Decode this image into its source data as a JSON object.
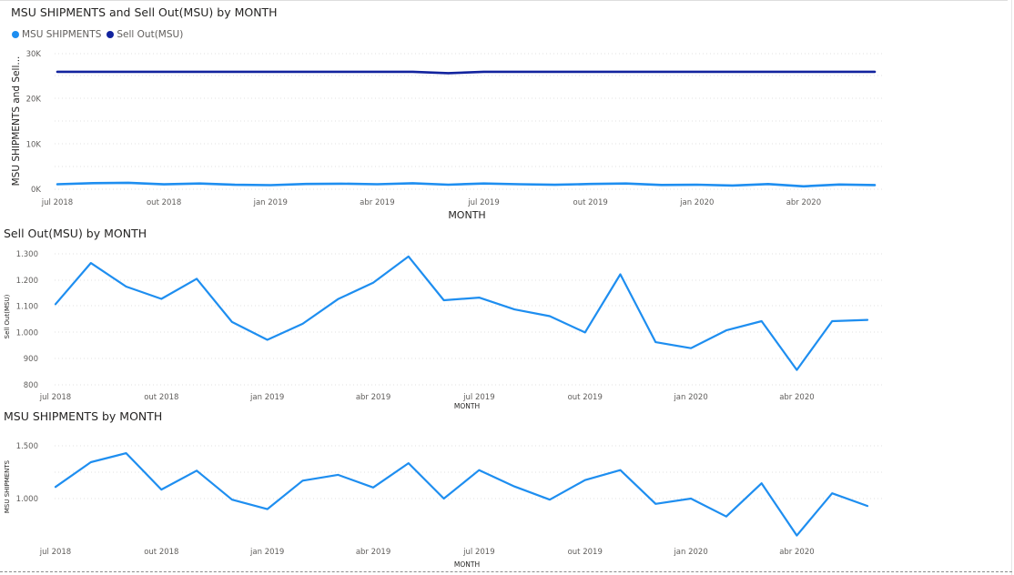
{
  "colors": {
    "msu_shipments": "#1e8ef0",
    "sell_out": "#12239e",
    "grid": "#e1e1e1",
    "axis_text": "#605e5c",
    "title": "#252423"
  },
  "months": [
    "jul 2018",
    "ago 2018",
    "set 2018",
    "out 2018",
    "nov 2018",
    "dez 2018",
    "jan 2019",
    "fev 2019",
    "mar 2019",
    "abr 2019",
    "mai 2019",
    "jun 2019",
    "jul 2019",
    "ago 2019",
    "set 2019",
    "out 2019",
    "nov 2019",
    "dez 2019",
    "jan 2020",
    "fev 2020",
    "mar 2020",
    "abr 2020",
    "mai 2020",
    "jun 2020"
  ],
  "chart_data": [
    {
      "type": "line",
      "title": "MSU SHIPMENTS and Sell Out(MSU) by MONTH",
      "xlabel": "MONTH",
      "ylabel": "MSU SHIPMENTS and Sell...",
      "x_tick_labels": [
        "jul 2018",
        "out 2018",
        "jan 2019",
        "abr 2019",
        "jul 2019",
        "out 2019",
        "jan 2020",
        "abr 2020"
      ],
      "y_tick_labels": [
        "0K",
        "10K",
        "20K",
        "30K"
      ],
      "y_ticks": [
        0,
        10000,
        20000,
        30000
      ],
      "ylim": [
        0,
        30000
      ],
      "legend_position": "top-left",
      "grid": true,
      "series": [
        {
          "name": "MSU SHIPMENTS",
          "color": "#1e8ef0",
          "values": [
            1100,
            1340,
            1430,
            1080,
            1260,
            990,
            900,
            1160,
            1220,
            1100,
            1330,
            1000,
            1270,
            1110,
            990,
            1170,
            1270,
            950,
            1000,
            830,
            1140,
            650,
            1050,
            930
          ]
        },
        {
          "name": "Sell Out(MSU)",
          "color": "#12239e",
          "values": [
            26000,
            26000,
            26000,
            26000,
            26000,
            26000,
            26000,
            26000,
            26000,
            26000,
            26000,
            25700,
            26000,
            26000,
            26000,
            26000,
            26000,
            26000,
            26000,
            26000,
            26000,
            26000,
            26000,
            26000
          ]
        }
      ]
    },
    {
      "type": "line",
      "title": "Sell Out(MSU) by MONTH",
      "xlabel": "MONTH",
      "ylabel": "Sell Out(MSU)",
      "x_tick_labels": [
        "jul 2018",
        "out 2018",
        "jan 2019",
        "abr 2019",
        "jul 2019",
        "out 2019",
        "jan 2020",
        "abr 2020"
      ],
      "y_tick_labels": [
        "1.300",
        "1.200",
        "1.100",
        "1.000",
        "900",
        "800"
      ],
      "y_ticks": [
        1300,
        1200,
        1100,
        1000,
        900,
        800
      ],
      "ylim": [
        800,
        1300
      ],
      "grid": true,
      "series": [
        {
          "name": "Sell Out(MSU)",
          "color": "#1e8ef0",
          "values": [
            1108,
            1265,
            1175,
            1128,
            1205,
            1040,
            972,
            1033,
            1127,
            1190,
            1290,
            1123,
            1133,
            1088,
            1062,
            1000,
            1222,
            963,
            940,
            1008,
            1043,
            857,
            1043,
            1048
          ]
        }
      ]
    },
    {
      "type": "line",
      "title": "MSU SHIPMENTS by MONTH",
      "xlabel": "MONTH",
      "ylabel": "MSU SHIPMENTS",
      "x_tick_labels": [
        "jul 2018",
        "out 2018",
        "jan 2019",
        "abr 2019",
        "jul 2019",
        "out 2019",
        "jan 2020",
        "abr 2020"
      ],
      "y_tick_labels": [
        "1.500",
        "1.000"
      ],
      "y_ticks": [
        1500,
        1000
      ],
      "ylim": [
        500,
        1600
      ],
      "grid": true,
      "series": [
        {
          "name": "MSU SHIPMENTS",
          "color": "#1e8ef0",
          "values": [
            1110,
            1345,
            1430,
            1085,
            1265,
            990,
            900,
            1170,
            1225,
            1105,
            1335,
            1000,
            1270,
            1115,
            990,
            1175,
            1270,
            950,
            1000,
            830,
            1145,
            650,
            1050,
            930
          ]
        }
      ]
    }
  ]
}
